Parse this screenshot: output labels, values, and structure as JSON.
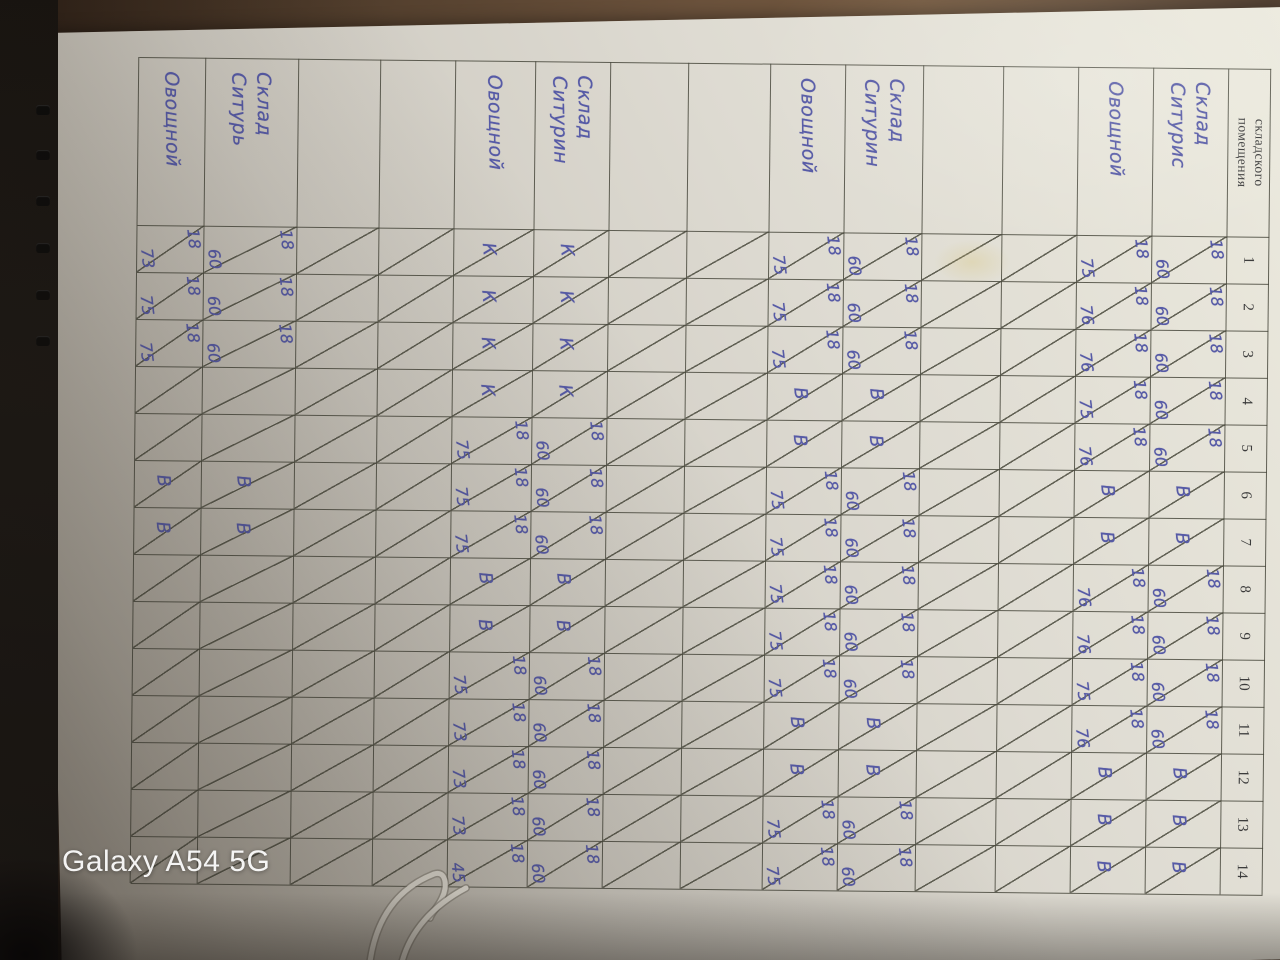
{
  "watermark": "Galaxy A54 5G",
  "table": {
    "corner_header_lines": [
      "складского",
      "помещения"
    ],
    "day_numbers": [
      "1",
      "2",
      "3",
      "4",
      "5",
      "6",
      "7",
      "8",
      "9",
      "10",
      "11",
      "12",
      "13",
      "14"
    ],
    "legend": {
      "pair_format": "temperature/humidity",
      "day_off_mark": "В",
      "k_mark": "К"
    },
    "rows": [
      {
        "label": [
          "Склад",
          "Ситурис"
        ],
        "cells": [
          "18/60",
          "18/60",
          "18/60",
          "18/60",
          "18/60",
          "В",
          "В",
          "18/60",
          "18/60",
          "18/60",
          "18/60",
          "В",
          "В",
          "В"
        ]
      },
      {
        "label": [
          "Овощной"
        ],
        "cells": [
          "18/75",
          "18/76",
          "18/76",
          "18/75",
          "18/76",
          "В",
          "В",
          "18/76",
          "18/76",
          "18/75",
          "18/76",
          "В",
          "В",
          "В"
        ]
      },
      {
        "label": [],
        "cells": [
          "",
          "",
          "",
          "",
          "",
          "",
          "",
          "",
          "",
          "",
          "",
          "",
          "",
          ""
        ]
      },
      {
        "label": [],
        "cells": [
          "",
          "",
          "",
          "",
          "",
          "",
          "",
          "",
          "",
          "",
          "",
          "",
          "",
          ""
        ]
      },
      {
        "label": [
          "Склад",
          "Ситурин"
        ],
        "cells": [
          "18/60",
          "18/60",
          "18/60",
          "В",
          "В",
          "18/60",
          "18/60",
          "18/60",
          "18/60",
          "18/60",
          "В",
          "В",
          "18/60",
          "18/60"
        ]
      },
      {
        "label": [
          "Овощной"
        ],
        "cells": [
          "18/75",
          "18/75",
          "18/75",
          "В",
          "В",
          "18/75",
          "18/75",
          "18/75",
          "18/75",
          "18/75",
          "В",
          "В",
          "18/75",
          "18/75"
        ]
      },
      {
        "label": [],
        "cells": [
          "",
          "",
          "",
          "",
          "",
          "",
          "",
          "",
          "",
          "",
          "",
          "",
          "",
          ""
        ]
      },
      {
        "label": [],
        "cells": [
          "",
          "",
          "",
          "",
          "",
          "",
          "",
          "",
          "",
          "",
          "",
          "",
          "",
          ""
        ]
      },
      {
        "label": [
          "Склад",
          "Ситурин"
        ],
        "cells": [
          "К",
          "К",
          "К",
          "К",
          "18/60",
          "18/60",
          "18/60",
          "В",
          "В",
          "18/60",
          "18/60",
          "18/60",
          "18/60",
          "18/60"
        ]
      },
      {
        "label": [
          "Овощной"
        ],
        "cells": [
          "К",
          "К",
          "К",
          "К",
          "18/75",
          "18/75",
          "18/75",
          "В",
          "В",
          "18/75",
          "18/73",
          "18/73",
          "18/73",
          "18/45"
        ]
      },
      {
        "label": [],
        "cells": [
          "",
          "",
          "",
          "",
          "",
          "",
          "",
          "",
          "",
          "",
          "",
          "",
          "",
          ""
        ]
      },
      {
        "label": [],
        "cells": [
          "",
          "",
          "",
          "",
          "",
          "",
          "",
          "",
          "",
          "",
          "",
          "",
          "",
          ""
        ]
      },
      {
        "label": [
          "Склад",
          "Ситурь"
        ],
        "cells": [
          "18/60",
          "18/60",
          "18/60",
          "",
          "",
          "В",
          "В",
          "",
          "",
          "",
          "",
          "",
          "",
          ""
        ]
      },
      {
        "label": [
          "Овощной"
        ],
        "cells": [
          "18/73",
          "18/75",
          "18/75",
          "",
          "",
          "В",
          "В",
          "",
          "",
          "",
          "",
          "",
          "",
          ""
        ]
      }
    ]
  },
  "colors": {
    "ink": "#565aa6",
    "grid": "#48483c",
    "paper_light": "#eceade",
    "paper_dark": "#9c958a",
    "desk": "#6b523c",
    "cover": "#17130f"
  }
}
